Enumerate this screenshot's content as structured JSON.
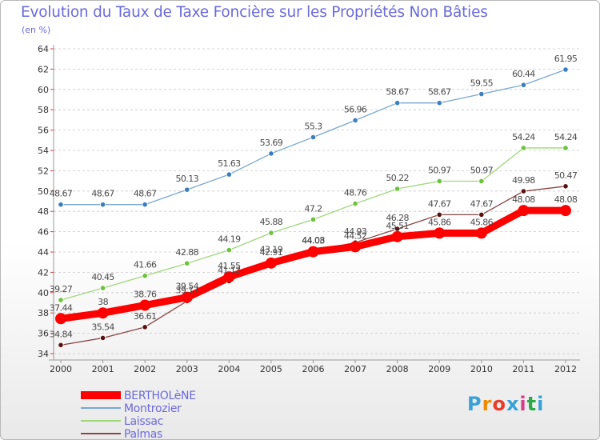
{
  "title": "Evolution du Taux de Taxe Foncière sur les Propriétés Non Bâties",
  "unit_label": "(en %)",
  "logo": {
    "text": "Proxiti",
    "colors": [
      "#3aa0d8",
      "#f08a00",
      "#e93b2a",
      "#3aa0d8",
      "#d83c8c",
      "#2aa84a",
      "#3aa0d8"
    ]
  },
  "colors": {
    "title": "#6a6adc",
    "grid": "#c8c8c8",
    "axis": "#999999"
  },
  "chart_data": {
    "type": "line",
    "title": "Evolution du Taux de Taxe Foncière sur les Propriétés Non Bâties",
    "ylabel": "(en %)",
    "x": [
      "2000",
      "2001",
      "2002",
      "2003",
      "2004",
      "2005",
      "2006",
      "2007",
      "2008",
      "2009",
      "2010",
      "2011",
      "2012"
    ],
    "ylim": [
      34,
      64
    ],
    "yticks": [
      34,
      36,
      38,
      40,
      42,
      44,
      46,
      48,
      50,
      52,
      54,
      56,
      58,
      60,
      62,
      64
    ],
    "grid": true,
    "legend_position": "bottom-left",
    "series": [
      {
        "name": "BERTHOLèNE",
        "color": "#ff0000",
        "marker": "#ff0000",
        "values": [
          37.44,
          38,
          38.76,
          39.54,
          41.55,
          42.91,
          44.03,
          44.52,
          45.51,
          45.86,
          45.86,
          48.08,
          48.08
        ],
        "labels": [
          "37.44",
          "38",
          "38.76",
          "39.54",
          "41.55",
          "42.91",
          "44.03",
          "44.52",
          "45.51",
          "45.86",
          "45.86",
          "48.08",
          "48.08"
        ]
      },
      {
        "name": "Montrozier",
        "color": "#79a7d1",
        "marker": "#3b7dbf",
        "values": [
          48.67,
          48.67,
          48.67,
          50.13,
          51.63,
          53.69,
          55.3,
          56.96,
          58.67,
          58.67,
          59.55,
          60.44,
          61.95
        ],
        "labels": [
          "48.67",
          "48.67",
          "48.67",
          "50.13",
          "51.63",
          "53.69",
          "55.3",
          "56.96",
          "58.67",
          "58.67",
          "59.55",
          "60.44",
          "61.95"
        ]
      },
      {
        "name": "Laissac",
        "color": "#9fd67a",
        "marker": "#6cc23c",
        "values": [
          39.27,
          40.45,
          41.66,
          42.88,
          44.19,
          45.88,
          47.2,
          48.76,
          50.22,
          50.97,
          50.97,
          54.24,
          54.24
        ],
        "labels": [
          "39.27",
          "40.45",
          "41.66",
          "42.88",
          "44.19",
          "45.88",
          "47.2",
          "48.76",
          "50.22",
          "50.97",
          "50.97",
          "54.24",
          "54.24"
        ]
      },
      {
        "name": "Palmas",
        "color": "#8a4444",
        "marker": "#5a1010",
        "values": [
          34.84,
          35.54,
          36.61,
          39.17,
          41.13,
          43.19,
          44.08,
          44.93,
          46.28,
          47.67,
          47.67,
          49.98,
          50.47
        ],
        "labels": [
          "34.84",
          "35.54",
          "36.61",
          "39.17",
          "41.13",
          "43.19",
          "44.08",
          "44.93",
          "46.28",
          "47.67",
          "47.67",
          "49.98",
          "50.47"
        ]
      }
    ]
  }
}
